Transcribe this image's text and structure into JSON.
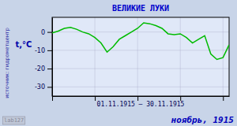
{
  "chart_data": {
    "type": "line",
    "title": "ВЕЛИКИЕ  ЛУКИ",
    "ylabel": "t,°C",
    "xlabel": "01.11.1915 – 30.11.1915",
    "annotations": [
      "источник: гидрометцентр",
      "lab127",
      "ноябрь, 1915"
    ],
    "x": [
      1,
      2,
      3,
      4,
      5,
      6,
      7,
      8,
      9,
      10,
      11,
      12,
      13,
      14,
      15,
      16,
      17,
      18,
      19,
      20,
      21,
      22,
      23,
      24,
      25,
      26,
      27,
      28,
      29,
      30
    ],
    "values": [
      -0.5,
      0.5,
      2,
      2.5,
      1.5,
      0,
      -1,
      -3,
      -6,
      -11,
      -8,
      -4,
      -2,
      0,
      2,
      5,
      4.5,
      3.5,
      2,
      -1,
      -1.5,
      -1,
      -3,
      -6,
      -4,
      -2,
      -12,
      -15,
      -14,
      -7
    ],
    "color": "#00BB00",
    "xlim": [
      1,
      30
    ],
    "xticks": [
      1,
      8,
      15,
      22,
      29
    ],
    "ylim": [
      -35,
      8
    ],
    "yticks": [
      0,
      -10,
      -20,
      -30
    ],
    "grid": true,
    "tick_labels": "y"
  }
}
